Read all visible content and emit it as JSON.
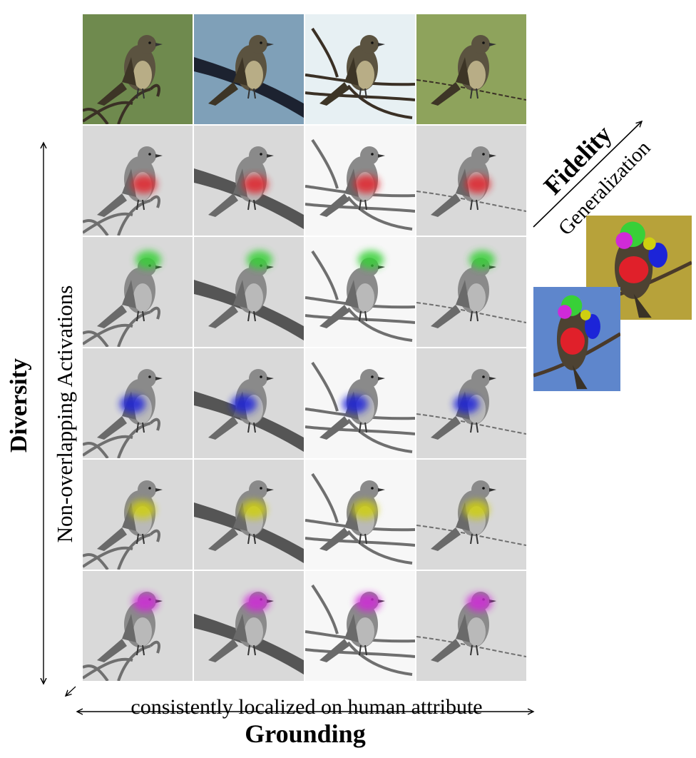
{
  "labels": {
    "diversity": "Diversity",
    "non_overlapping": "Non-overlapping Activations",
    "consistently": "consistently localized on human attribute",
    "grounding": "Grounding",
    "fidelity": "Fidelity",
    "generalization": "Generalization"
  },
  "grid": {
    "columns": [
      {
        "bg": "#6f8a4e",
        "perch": "twigs"
      },
      {
        "bg": "#7fa0b8",
        "perch": "cable"
      },
      {
        "bg": "#e7f0f3",
        "perch": "branch"
      },
      {
        "bg": "#8ea35c",
        "perch": "wire"
      }
    ],
    "rows": [
      {
        "kind": "original",
        "part": "",
        "color": ""
      },
      {
        "kind": "activation",
        "part": "belly",
        "color": "#e0202a"
      },
      {
        "kind": "activation",
        "part": "crown",
        "color": "#38d038"
      },
      {
        "kind": "activation",
        "part": "wing",
        "color": "#1c24d8"
      },
      {
        "kind": "activation",
        "part": "breast",
        "color": "#cfcf10"
      },
      {
        "kind": "activation",
        "part": "cheek",
        "color": "#d02ad8"
      }
    ]
  },
  "side_images": [
    {
      "name": "side-bird-yellow-green",
      "bg": "#b7a23a",
      "parts": [
        "#38d038",
        "#d02ad8",
        "#e0202a",
        "#1c24d8",
        "#cfcf10"
      ]
    },
    {
      "name": "side-bird-blue-sky",
      "bg": "#5e86cc",
      "parts": [
        "#38d038",
        "#d02ad8",
        "#e0202a",
        "#1c24d8",
        "#cfcf10"
      ]
    }
  ]
}
